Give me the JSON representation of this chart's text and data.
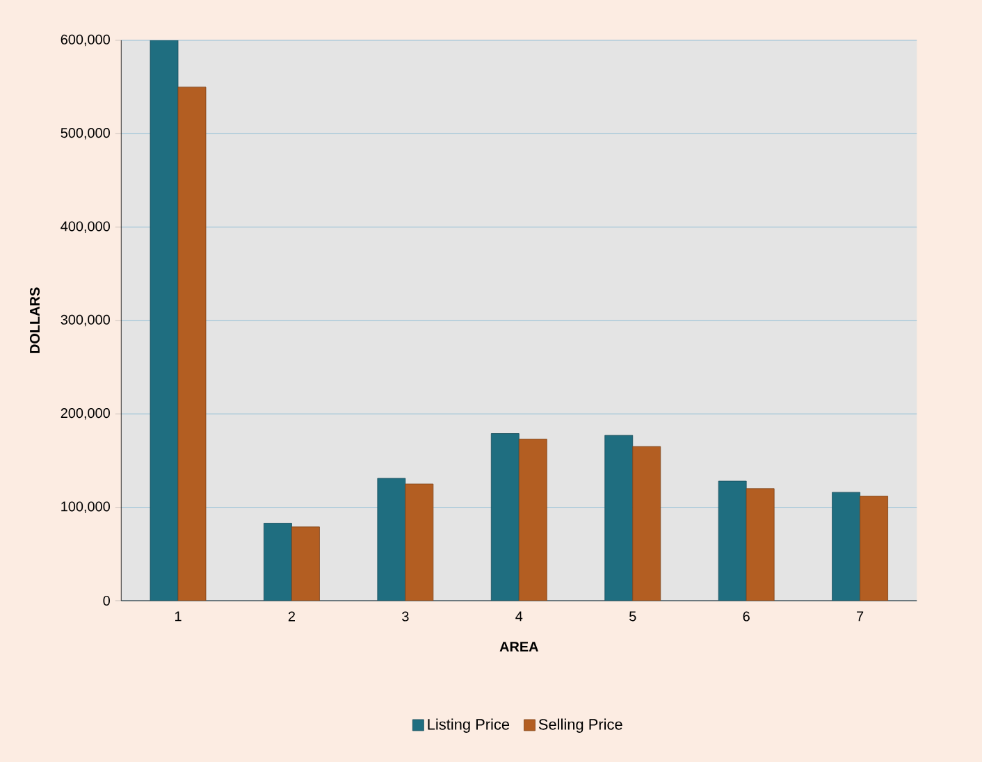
{
  "chart_data": {
    "type": "bar",
    "xlabel": "AREA",
    "ylabel": "DOLLARS",
    "categories": [
      "1",
      "2",
      "3",
      "4",
      "5",
      "6",
      "7"
    ],
    "series": [
      {
        "name": "Listing Price",
        "color": "#1f6e80",
        "values": [
          600000,
          83000,
          131000,
          179000,
          177000,
          128000,
          116000
        ]
      },
      {
        "name": "Selling Price",
        "color": "#b35e22",
        "values": [
          550000,
          79000,
          125000,
          173000,
          165000,
          120000,
          112000
        ]
      }
    ],
    "ylim": [
      0,
      600000
    ],
    "yticks": [
      {
        "value": 0,
        "label": "0"
      },
      {
        "value": 100000,
        "label": "100,000"
      },
      {
        "value": 200000,
        "label": "200,000"
      },
      {
        "value": 300000,
        "label": "300,000"
      },
      {
        "value": 400000,
        "label": "400,000"
      },
      {
        "value": 500000,
        "label": "500,000"
      },
      {
        "value": 600000,
        "label": "600,000"
      }
    ],
    "grid": "y",
    "legend": "bottom"
  }
}
